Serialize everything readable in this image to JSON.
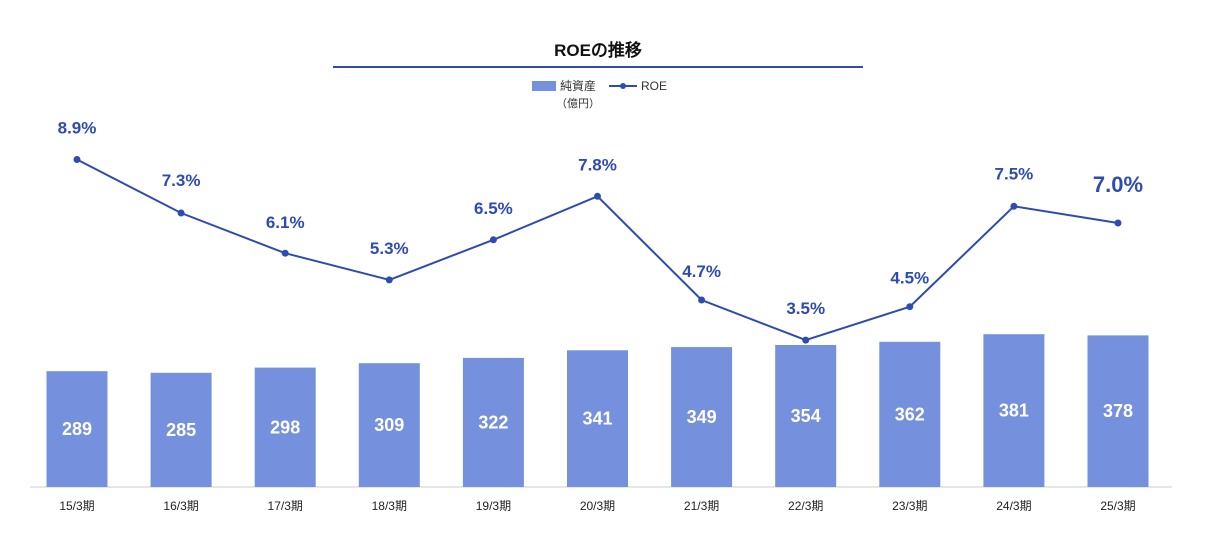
{
  "chart_data": {
    "type": "bar",
    "title": "ROEの推移",
    "categories": [
      "15/3期",
      "16/3期",
      "17/3期",
      "18/3期",
      "19/3期",
      "20/3期",
      "21/3期",
      "22/3期",
      "23/3期",
      "24/3期",
      "25/3期"
    ],
    "series": [
      {
        "name": "純資産",
        "unit": "（億円）",
        "type": "bar",
        "color": "#7590dc",
        "values": [
          289,
          285,
          298,
          309,
          322,
          341,
          349,
          354,
          362,
          381,
          378
        ],
        "labels": [
          "289",
          "285",
          "298",
          "309",
          "322",
          "341",
          "349",
          "354",
          "362",
          "381",
          "378"
        ]
      },
      {
        "name": "ROE",
        "type": "line",
        "color": "#2e4bb0",
        "values": [
          8.9,
          7.3,
          6.1,
          5.3,
          6.5,
          7.8,
          4.7,
          3.5,
          4.5,
          7.5,
          7.0
        ],
        "labels": [
          "8.9%",
          "7.3%",
          "6.1%",
          "5.3%",
          "6.5%",
          "7.8%",
          "4.7%",
          "3.5%",
          "4.5%",
          "7.5%",
          "7.0%"
        ],
        "emphasized_index": 10
      }
    ],
    "legend_position": "top-center",
    "grid": false,
    "axis_color": "#cccccc",
    "title_underline_color": "#2e4bb0"
  }
}
